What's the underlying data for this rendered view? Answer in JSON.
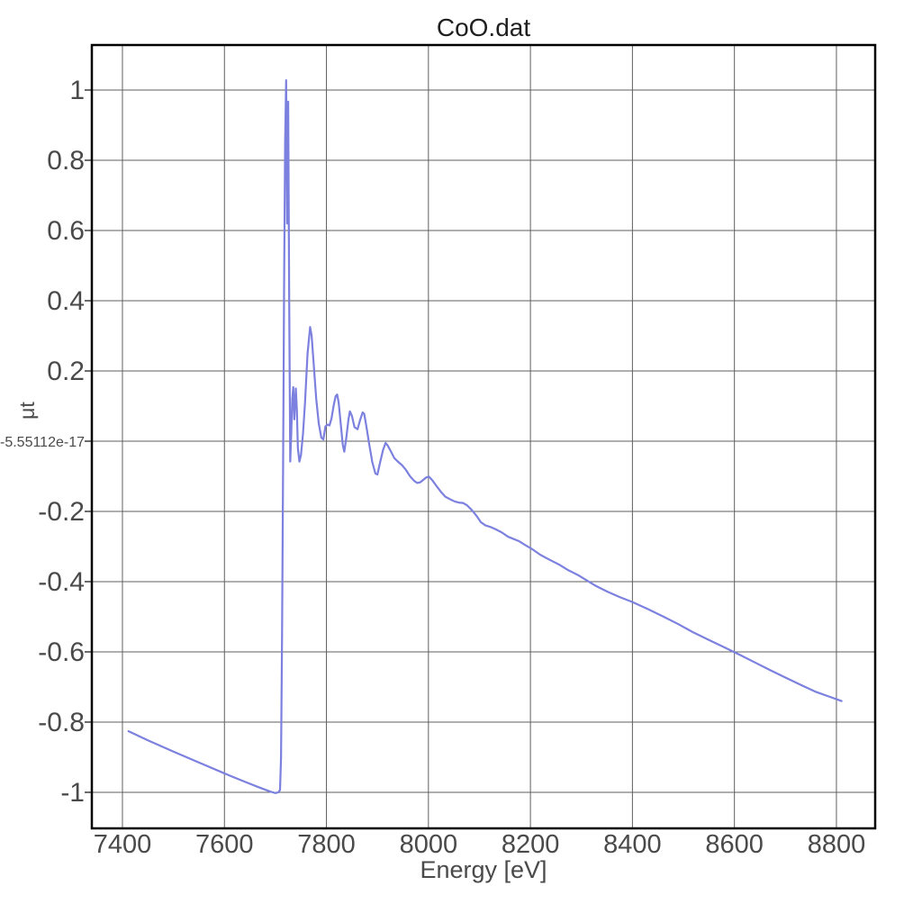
{
  "colors": {
    "background": "#ffffff",
    "line": "#7c80df",
    "grid": "#5f5f5f",
    "border": "#000000",
    "tick_text": "#4a4a4a",
    "title_text": "#1f1f1f"
  },
  "chart_data": {
    "type": "line",
    "title": "CoO.dat",
    "xlabel": "Energy [eV]",
    "ylabel": "μt",
    "grid": true,
    "legend": "none",
    "xlim": [
      7340,
      8876
    ],
    "ylim": [
      -1.1026,
      1.1282
    ],
    "x_ticks": [
      {
        "value": 7400,
        "label": "7400"
      },
      {
        "value": 7600,
        "label": "7600"
      },
      {
        "value": 7800,
        "label": "7800"
      },
      {
        "value": 8000,
        "label": "8000"
      },
      {
        "value": 8200,
        "label": "8200"
      },
      {
        "value": 8400,
        "label": "8400"
      },
      {
        "value": 8600,
        "label": "8600"
      },
      {
        "value": 8800,
        "label": "8800"
      }
    ],
    "y_ticks": [
      {
        "value": 1,
        "label": "1"
      },
      {
        "value": 0.8,
        "label": "0.8"
      },
      {
        "value": 0.6,
        "label": "0.6"
      },
      {
        "value": 0.4,
        "label": "0.4"
      },
      {
        "value": 0.2,
        "label": "0.2"
      },
      {
        "value": 0,
        "label": "-5.55112e-17",
        "small": true
      },
      {
        "value": -0.2,
        "label": "-0.2"
      },
      {
        "value": -0.4,
        "label": "-0.4"
      },
      {
        "value": -0.6,
        "label": "-0.6"
      },
      {
        "value": -0.8,
        "label": "-0.8"
      },
      {
        "value": -1,
        "label": "-1"
      }
    ],
    "series": [
      {
        "name": "CoO.dat",
        "x": [
          7412,
          7450,
          7500,
          7550,
          7600,
          7640,
          7670,
          7690,
          7700,
          7706,
          7709,
          7711,
          7713,
          7715,
          7717,
          7719,
          7721,
          7723,
          7725,
          7727,
          7729,
          7731,
          7733,
          7735,
          7737,
          7740,
          7742,
          7744,
          7747,
          7750,
          7754,
          7758,
          7763,
          7768,
          7771,
          7775,
          7780,
          7785,
          7790,
          7794,
          7798,
          7802,
          7806,
          7810,
          7814,
          7818,
          7821,
          7824,
          7828,
          7832,
          7835,
          7839,
          7843,
          7846,
          7850,
          7855,
          7861,
          7866,
          7871,
          7874,
          7878,
          7884,
          7890,
          7896,
          7900,
          7905,
          7911,
          7916,
          7920,
          7926,
          7933,
          7940,
          7948,
          7956,
          7964,
          7972,
          7978,
          7984,
          7990,
          7996,
          8001,
          8008,
          8016,
          8025,
          8033,
          8042,
          8052,
          8060,
          8068,
          8076,
          8085,
          8094,
          8103,
          8112,
          8121,
          8132,
          8144,
          8156,
          8168,
          8178,
          8190,
          8204,
          8220,
          8238,
          8257,
          8275,
          8293,
          8310,
          8328,
          8350,
          8375,
          8400,
          8430,
          8460,
          8490,
          8520,
          8550,
          8580,
          8610,
          8640,
          8670,
          8700,
          8730,
          8760,
          8785,
          8810
        ],
        "y": [
          -0.826,
          -0.852,
          -0.884,
          -0.915,
          -0.946,
          -0.97,
          -0.987,
          -0.998,
          -1.002,
          -1.0,
          -0.993,
          -0.9,
          -0.55,
          -0.08,
          0.45,
          0.85,
          1.028,
          0.62,
          0.967,
          0.4,
          -0.058,
          0.02,
          0.12,
          0.154,
          0.062,
          0.15,
          0.09,
          -0.02,
          -0.058,
          -0.04,
          0.02,
          0.11,
          0.25,
          0.325,
          0.3,
          0.22,
          0.12,
          0.05,
          0.01,
          0.005,
          0.042,
          0.047,
          0.045,
          0.065,
          0.1,
          0.128,
          0.133,
          0.11,
          0.05,
          -0.01,
          -0.03,
          0.01,
          0.06,
          0.085,
          0.072,
          0.04,
          0.034,
          0.06,
          0.082,
          0.078,
          0.045,
          -0.01,
          -0.06,
          -0.092,
          -0.095,
          -0.062,
          -0.025,
          -0.005,
          -0.012,
          -0.028,
          -0.048,
          -0.058,
          -0.068,
          -0.082,
          -0.1,
          -0.113,
          -0.119,
          -0.117,
          -0.11,
          -0.103,
          -0.101,
          -0.112,
          -0.128,
          -0.145,
          -0.158,
          -0.165,
          -0.172,
          -0.175,
          -0.176,
          -0.183,
          -0.196,
          -0.212,
          -0.231,
          -0.24,
          -0.244,
          -0.251,
          -0.26,
          -0.272,
          -0.279,
          -0.285,
          -0.296,
          -0.308,
          -0.324,
          -0.338,
          -0.352,
          -0.368,
          -0.381,
          -0.396,
          -0.412,
          -0.428,
          -0.444,
          -0.458,
          -0.478,
          -0.499,
          -0.521,
          -0.545,
          -0.566,
          -0.587,
          -0.608,
          -0.63,
          -0.652,
          -0.673,
          -0.694,
          -0.714,
          -0.727,
          -0.74
        ]
      }
    ]
  }
}
